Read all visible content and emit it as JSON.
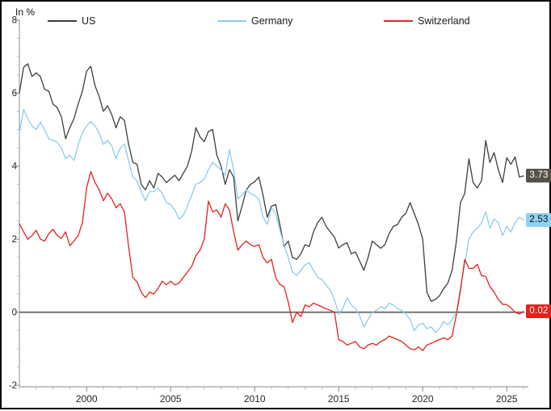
{
  "chart": {
    "axis_title": "In %"
  },
  "chart_data": {
    "type": "line",
    "title": "",
    "xlabel": "",
    "ylabel": "In %",
    "x_start": 1996,
    "x_step": 0.25,
    "xlim": [
      1996,
      2026.35
    ],
    "ylim": [
      -2,
      8
    ],
    "x_ticks_major": [
      2000,
      2005,
      2010,
      2015,
      2020,
      2025
    ],
    "x_ticks_minor_step": 1,
    "y_ticks_major": [
      8,
      6,
      4,
      2,
      0,
      -2
    ],
    "y_ticks_minor_step": 0.5,
    "zero_line": true,
    "grid": false,
    "legend_position": "top",
    "series": [
      {
        "name": "US",
        "color": "#3e3e3e",
        "values": [
          6.0,
          6.7,
          6.8,
          6.45,
          6.55,
          6.45,
          6.1,
          6.05,
          5.7,
          5.6,
          5.35,
          4.75,
          5.05,
          5.3,
          5.7,
          6.05,
          6.6,
          6.73,
          6.2,
          5.9,
          5.5,
          5.65,
          5.4,
          5.05,
          5.35,
          5.25,
          4.6,
          4.1,
          4.05,
          3.5,
          3.35,
          3.6,
          3.4,
          3.8,
          3.7,
          3.55,
          3.65,
          3.75,
          3.6,
          3.8,
          4.0,
          4.4,
          5.05,
          4.8,
          4.67,
          4.95,
          5.0,
          4.3,
          4.0,
          3.5,
          3.9,
          3.7,
          2.5,
          2.9,
          3.35,
          3.5,
          3.57,
          3.7,
          3.2,
          2.6,
          2.9,
          2.95,
          2.4,
          1.8,
          1.95,
          1.5,
          1.45,
          1.6,
          1.85,
          1.8,
          2.2,
          2.45,
          2.6,
          2.35,
          2.2,
          2.05,
          1.76,
          1.85,
          1.9,
          1.6,
          1.65,
          1.4,
          1.15,
          1.5,
          1.95,
          1.85,
          1.75,
          1.85,
          2.15,
          2.35,
          2.4,
          2.6,
          2.71,
          3.0,
          2.7,
          2.4,
          2.0,
          0.55,
          0.3,
          0.35,
          0.45,
          0.65,
          0.8,
          1.15,
          1.93,
          3.0,
          3.25,
          4.2,
          3.55,
          3.4,
          3.6,
          4.7,
          4.1,
          4.37,
          3.9,
          3.55,
          4.23,
          4.05,
          4.25,
          3.7,
          3.73
        ]
      },
      {
        "name": "Germany",
        "color": "#8bcdec",
        "values": [
          4.9,
          5.55,
          5.3,
          5.1,
          5.0,
          5.2,
          5.0,
          4.75,
          4.7,
          4.65,
          4.5,
          4.2,
          4.3,
          4.15,
          4.6,
          4.9,
          5.1,
          5.22,
          5.1,
          4.9,
          4.6,
          4.7,
          4.55,
          4.2,
          4.5,
          4.6,
          4.15,
          3.7,
          3.6,
          3.3,
          3.05,
          3.3,
          3.3,
          3.4,
          3.25,
          3.0,
          2.95,
          2.8,
          2.55,
          2.65,
          2.9,
          3.2,
          3.5,
          3.55,
          3.65,
          3.9,
          4.1,
          4.0,
          3.9,
          3.75,
          4.45,
          3.9,
          3.1,
          3.2,
          3.35,
          3.25,
          3.2,
          3.1,
          2.6,
          2.4,
          2.85,
          2.7,
          2.25,
          1.85,
          1.5,
          1.1,
          1.0,
          1.15,
          1.3,
          1.35,
          1.15,
          0.95,
          0.9,
          0.75,
          0.6,
          0.35,
          -0.05,
          0.1,
          0.4,
          0.2,
          0.1,
          -0.1,
          -0.4,
          -0.2,
          0.0,
          0.05,
          0.15,
          0.1,
          0.25,
          0.2,
          0.1,
          0.05,
          -0.05,
          -0.2,
          -0.5,
          -0.35,
          -0.3,
          -0.45,
          -0.4,
          -0.55,
          -0.45,
          -0.25,
          -0.35,
          -0.2,
          0.0,
          0.7,
          1.3,
          2.0,
          2.2,
          2.3,
          2.45,
          2.75,
          2.3,
          2.55,
          2.45,
          2.1,
          2.35,
          2.2,
          2.45,
          2.6,
          2.53
        ]
      },
      {
        "name": "Switzerland",
        "color": "#e8211c",
        "values": [
          2.42,
          2.2,
          2.0,
          2.1,
          2.24,
          2.0,
          1.95,
          2.15,
          2.27,
          2.1,
          2.02,
          2.2,
          1.82,
          1.95,
          2.1,
          2.45,
          3.4,
          3.85,
          3.55,
          3.35,
          3.05,
          3.26,
          3.1,
          2.86,
          2.97,
          2.75,
          1.8,
          0.95,
          0.83,
          0.55,
          0.4,
          0.55,
          0.5,
          0.65,
          0.85,
          0.75,
          0.85,
          0.75,
          0.8,
          0.95,
          1.1,
          1.25,
          1.55,
          1.7,
          2.0,
          3.04,
          2.75,
          2.8,
          2.6,
          2.97,
          2.8,
          2.2,
          1.7,
          1.85,
          1.95,
          1.85,
          1.8,
          1.85,
          1.5,
          1.35,
          1.45,
          0.95,
          0.76,
          0.7,
          0.28,
          -0.28,
          0.0,
          -0.12,
          0.2,
          0.15,
          0.25,
          0.2,
          0.15,
          0.1,
          0.05,
          0.0,
          -0.75,
          -0.8,
          -0.9,
          -0.85,
          -0.8,
          -0.95,
          -1.0,
          -0.9,
          -0.85,
          -0.9,
          -0.8,
          -0.75,
          -0.65,
          -0.7,
          -0.75,
          -0.8,
          -0.9,
          -1.0,
          -1.03,
          -0.95,
          -1.05,
          -0.9,
          -0.85,
          -0.8,
          -0.75,
          -0.7,
          -0.75,
          -0.65,
          -0.08,
          0.6,
          1.45,
          1.2,
          1.2,
          1.31,
          1.0,
          0.98,
          0.7,
          0.55,
          0.35,
          0.22,
          0.21,
          0.12,
          0.0,
          -0.05,
          0.02
        ]
      }
    ],
    "end_labels": [
      {
        "label": "3.73",
        "value": 3.73,
        "bg": "#57514a",
        "fg": "#ffffff"
      },
      {
        "label": "2.53",
        "value": 2.53,
        "bg": "#8ed1f2",
        "fg": "#111111"
      },
      {
        "label": "0.02",
        "value": 0.02,
        "bg": "#e3211c",
        "fg": "#ffffff"
      }
    ]
  }
}
